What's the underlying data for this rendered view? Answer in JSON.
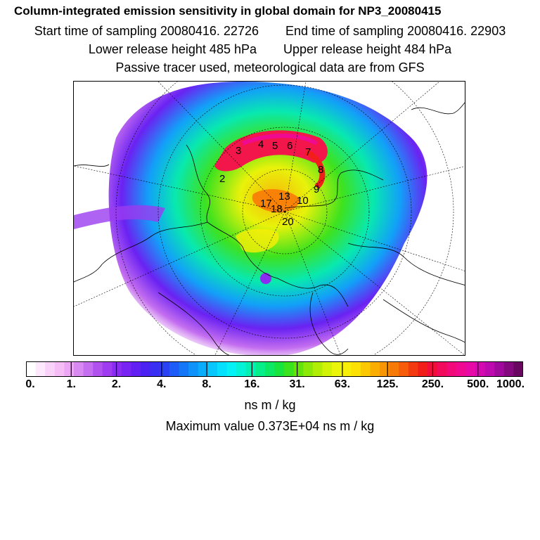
{
  "title": "Column-integrated emission sensitivity in global domain for NP3_20080415",
  "sampling": {
    "start": "Start time of sampling 20080416. 22726",
    "end": "End time of sampling 20080416. 22903"
  },
  "release": {
    "lower": "Lower release height  485 hPa",
    "upper": "Upper release height  484 hPa"
  },
  "tracer_note": "Passive tracer used, meteorological data are from GFS",
  "units": "ns m / kg",
  "max_value": "Maximum value  0.373E+04 ns m / kg",
  "colorbar": {
    "colors": [
      "#ffffff",
      "#fde8fd",
      "#f9d2f9",
      "#f5bcf5",
      "#eda6f5",
      "#d98af2",
      "#c56ff0",
      "#b152ef",
      "#9f3cf0",
      "#8b2cf2",
      "#7824f2",
      "#6220f2",
      "#4c22f2",
      "#3a2ff2",
      "#2a42f4",
      "#1d5cf6",
      "#1577f8",
      "#0f92fa",
      "#0aadfc",
      "#07c7fd",
      "#05e0fe",
      "#04f2f5",
      "#04f2d6",
      "#04f0b2",
      "#06ee8a",
      "#0ae864",
      "#18e43e",
      "#3be21e",
      "#62e30a",
      "#8ce806",
      "#b2ee05",
      "#d2f306",
      "#eaf50a",
      "#f8ef08",
      "#fde004",
      "#fcc802",
      "#fbae02",
      "#f99604",
      "#f87a06",
      "#f65c0a",
      "#f43a10",
      "#f21e1a",
      "#f20e3a",
      "#f20a5c",
      "#f20a7a",
      "#f00a92",
      "#e80aa6",
      "#d40ab0",
      "#bc0aae",
      "#a00a9c",
      "#84087e",
      "#680660"
    ],
    "tick_labels": [
      "0.",
      "1.",
      "2.",
      "4.",
      "8.",
      "16.",
      "31.",
      "63.",
      "125.",
      "250.",
      "500.",
      "1000."
    ]
  },
  "map_labels": [
    "2",
    "3",
    "4",
    "5",
    "6",
    "7",
    "8",
    "9",
    "10",
    "13",
    "17",
    "18",
    "20"
  ]
}
